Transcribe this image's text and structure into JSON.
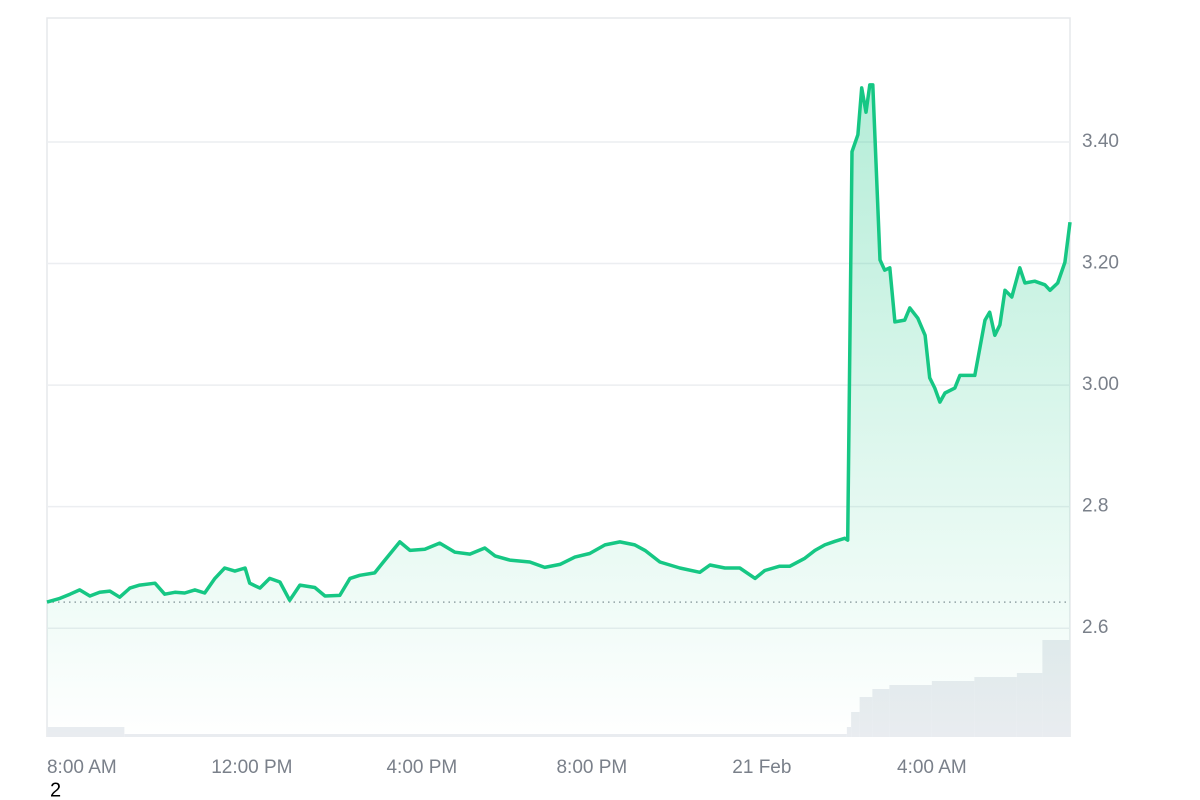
{
  "chart_data": {
    "type": "line",
    "annotation": "2",
    "series": [
      {
        "color": "#16c784",
        "x": [
          7.18,
          7.48,
          7.72,
          7.95,
          8.19,
          8.42,
          8.66,
          8.89,
          9.13,
          9.36,
          9.72,
          9.95,
          10.19,
          10.42,
          10.66,
          10.89,
          11.13,
          11.36,
          11.6,
          11.84,
          11.95,
          12.19,
          12.42,
          12.66,
          12.89,
          13.13,
          13.48,
          13.72,
          14.07,
          14.31,
          14.54,
          14.89,
          15.13,
          15.48,
          15.72,
          16.07,
          16.42,
          16.78,
          17.13,
          17.48,
          17.72,
          18.07,
          18.54,
          18.89,
          19.25,
          19.6,
          19.95,
          20.31,
          20.66,
          21.01,
          21.25,
          21.6,
          22.07,
          22.54,
          22.78,
          23.13,
          23.48,
          23.84,
          24.07,
          24.42,
          24.66,
          25.01,
          25.25,
          25.48,
          25.72,
          25.95,
          26.02,
          26.12,
          26.26,
          26.35,
          26.45,
          26.54,
          26.61,
          26.78,
          26.89,
          27.01,
          27.13,
          27.36,
          27.48,
          27.67,
          27.84,
          27.95,
          28.07,
          28.19,
          28.31,
          28.54,
          28.66,
          28.85,
          29.01,
          29.25,
          29.36,
          29.48,
          29.6,
          29.72,
          29.88,
          30.07,
          30.19,
          30.42,
          30.66,
          30.78,
          30.96,
          31.13,
          31.25
        ],
        "values": [
          2.643,
          2.649,
          2.656,
          2.663,
          2.653,
          2.659,
          2.661,
          2.651,
          2.666,
          2.671,
          2.674,
          2.656,
          2.659,
          2.658,
          2.663,
          2.658,
          2.682,
          2.699,
          2.694,
          2.699,
          2.674,
          2.666,
          2.682,
          2.676,
          2.646,
          2.671,
          2.667,
          2.653,
          2.654,
          2.682,
          2.687,
          2.691,
          2.712,
          2.742,
          2.728,
          2.73,
          2.74,
          2.725,
          2.722,
          2.732,
          2.719,
          2.712,
          2.709,
          2.7,
          2.705,
          2.717,
          2.723,
          2.737,
          2.742,
          2.737,
          2.728,
          2.709,
          2.699,
          2.692,
          2.704,
          2.699,
          2.699,
          2.682,
          2.695,
          2.702,
          2.702,
          2.715,
          2.728,
          2.737,
          2.743,
          2.748,
          2.745,
          3.384,
          3.412,
          3.489,
          3.449,
          3.494,
          3.494,
          3.206,
          3.189,
          3.193,
          3.104,
          3.107,
          3.127,
          3.11,
          3.082,
          3.012,
          2.995,
          2.972,
          2.987,
          2.995,
          3.016,
          3.016,
          3.016,
          3.107,
          3.12,
          3.082,
          3.099,
          3.156,
          3.145,
          3.193,
          3.168,
          3.171,
          3.165,
          3.156,
          3.168,
          3.202,
          3.268
        ]
      }
    ],
    "xlim": [
      7.18,
      31.25
    ],
    "xticks": [
      {
        "value": 8,
        "label": "8:00 AM"
      },
      {
        "value": 12,
        "label": "12:00 PM"
      },
      {
        "value": 16,
        "label": "4:00 PM"
      },
      {
        "value": 20,
        "label": "8:00 PM"
      },
      {
        "value": 24,
        "label": "21 Feb"
      },
      {
        "value": 28,
        "label": "4:00 AM"
      }
    ],
    "ylim": [
      2.421,
      3.604
    ],
    "yticks": [
      2.6,
      2.8,
      {
        "value": 3,
        "label": "3.00"
      },
      {
        "value": 3.2,
        "label": "3.20"
      },
      {
        "value": 3.4,
        "label": "3.40"
      }
    ],
    "grid": true,
    "baseline": 2.643,
    "volume": {
      "color": "#e9ecf0",
      "bins": [
        7.18,
        9.0,
        26.0,
        26.1,
        26.3,
        26.6,
        27.0,
        28.0,
        29.0,
        30.0,
        30.6,
        31.25
      ],
      "values": [
        10,
        3,
        10,
        25,
        40,
        48,
        52,
        56,
        60,
        64,
        97
      ],
      "lim": [
        0,
        100
      ]
    }
  }
}
